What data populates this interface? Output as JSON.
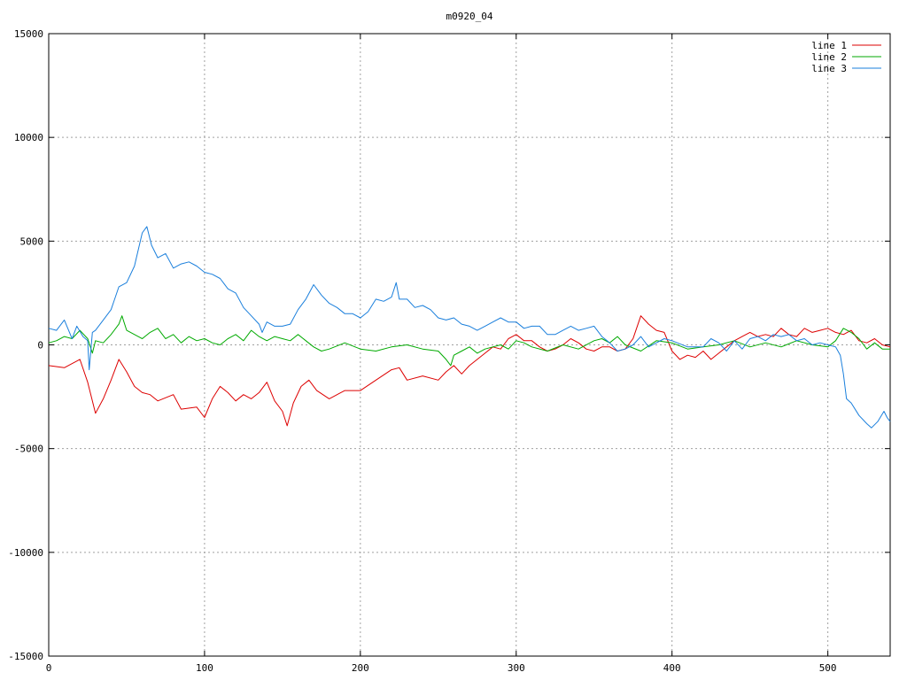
{
  "chart_data": {
    "type": "line",
    "title": "m0920_04",
    "xlabel": "",
    "ylabel": "",
    "xlim": [
      0,
      540
    ],
    "ylim": [
      -15000,
      15000
    ],
    "xticks": [
      0,
      100,
      200,
      300,
      400,
      500
    ],
    "yticks": [
      -15000,
      -10000,
      -5000,
      0,
      5000,
      10000,
      15000
    ],
    "grid": true,
    "legend_position": "top-right",
    "series": [
      {
        "name": "line 1",
        "color": "#dd0000",
        "points": [
          [
            0,
            -1000
          ],
          [
            10,
            -1100
          ],
          [
            20,
            -700
          ],
          [
            25,
            -1800
          ],
          [
            30,
            -3300
          ],
          [
            35,
            -2600
          ],
          [
            40,
            -1700
          ],
          [
            45,
            -700
          ],
          [
            50,
            -1300
          ],
          [
            55,
            -2000
          ],
          [
            60,
            -2300
          ],
          [
            65,
            -2400
          ],
          [
            70,
            -2700
          ],
          [
            80,
            -2400
          ],
          [
            85,
            -3100
          ],
          [
            95,
            -3000
          ],
          [
            100,
            -3500
          ],
          [
            105,
            -2600
          ],
          [
            110,
            -2000
          ],
          [
            115,
            -2300
          ],
          [
            120,
            -2700
          ],
          [
            125,
            -2400
          ],
          [
            130,
            -2600
          ],
          [
            135,
            -2300
          ],
          [
            140,
            -1800
          ],
          [
            145,
            -2700
          ],
          [
            150,
            -3200
          ],
          [
            153,
            -3900
          ],
          [
            157,
            -2800
          ],
          [
            162,
            -2000
          ],
          [
            167,
            -1700
          ],
          [
            172,
            -2200
          ],
          [
            180,
            -2600
          ],
          [
            190,
            -2200
          ],
          [
            200,
            -2200
          ],
          [
            210,
            -1700
          ],
          [
            220,
            -1200
          ],
          [
            225,
            -1100
          ],
          [
            230,
            -1700
          ],
          [
            240,
            -1500
          ],
          [
            250,
            -1700
          ],
          [
            255,
            -1300
          ],
          [
            260,
            -1000
          ],
          [
            265,
            -1400
          ],
          [
            270,
            -1000
          ],
          [
            275,
            -700
          ],
          [
            280,
            -400
          ],
          [
            285,
            -100
          ],
          [
            290,
            -200
          ],
          [
            295,
            300
          ],
          [
            300,
            500
          ],
          [
            305,
            200
          ],
          [
            310,
            200
          ],
          [
            315,
            -100
          ],
          [
            320,
            -300
          ],
          [
            325,
            -200
          ],
          [
            330,
            0
          ],
          [
            335,
            300
          ],
          [
            340,
            100
          ],
          [
            345,
            -200
          ],
          [
            350,
            -300
          ],
          [
            355,
            -100
          ],
          [
            360,
            -100
          ],
          [
            365,
            -300
          ],
          [
            370,
            -200
          ],
          [
            375,
            300
          ],
          [
            380,
            1400
          ],
          [
            385,
            1000
          ],
          [
            390,
            700
          ],
          [
            395,
            600
          ],
          [
            400,
            -300
          ],
          [
            405,
            -700
          ],
          [
            410,
            -500
          ],
          [
            415,
            -600
          ],
          [
            420,
            -300
          ],
          [
            425,
            -700
          ],
          [
            430,
            -400
          ],
          [
            435,
            -100
          ],
          [
            440,
            200
          ],
          [
            445,
            400
          ],
          [
            450,
            600
          ],
          [
            455,
            400
          ],
          [
            460,
            500
          ],
          [
            465,
            400
          ],
          [
            470,
            800
          ],
          [
            475,
            500
          ],
          [
            480,
            400
          ],
          [
            485,
            800
          ],
          [
            490,
            600
          ],
          [
            495,
            700
          ],
          [
            500,
            800
          ],
          [
            505,
            600
          ],
          [
            510,
            500
          ],
          [
            515,
            700
          ],
          [
            520,
            200
          ],
          [
            525,
            100
          ],
          [
            530,
            300
          ],
          [
            535,
            0
          ],
          [
            540,
            -100
          ]
        ]
      },
      {
        "name": "line 2",
        "color": "#00aa00",
        "points": [
          [
            0,
            100
          ],
          [
            5,
            200
          ],
          [
            10,
            400
          ],
          [
            15,
            300
          ],
          [
            20,
            700
          ],
          [
            25,
            300
          ],
          [
            28,
            -400
          ],
          [
            30,
            200
          ],
          [
            35,
            100
          ],
          [
            40,
            500
          ],
          [
            45,
            1000
          ],
          [
            47,
            1400
          ],
          [
            50,
            700
          ],
          [
            55,
            500
          ],
          [
            60,
            300
          ],
          [
            65,
            600
          ],
          [
            70,
            800
          ],
          [
            75,
            300
          ],
          [
            80,
            500
          ],
          [
            85,
            100
          ],
          [
            90,
            400
          ],
          [
            95,
            200
          ],
          [
            100,
            300
          ],
          [
            105,
            100
          ],
          [
            110,
            0
          ],
          [
            115,
            300
          ],
          [
            120,
            500
          ],
          [
            125,
            200
          ],
          [
            130,
            700
          ],
          [
            135,
            400
          ],
          [
            140,
            200
          ],
          [
            145,
            400
          ],
          [
            150,
            300
          ],
          [
            155,
            200
          ],
          [
            160,
            500
          ],
          [
            165,
            200
          ],
          [
            170,
            -100
          ],
          [
            175,
            -300
          ],
          [
            180,
            -200
          ],
          [
            190,
            100
          ],
          [
            200,
            -200
          ],
          [
            210,
            -300
          ],
          [
            220,
            -100
          ],
          [
            230,
            0
          ],
          [
            240,
            -200
          ],
          [
            250,
            -300
          ],
          [
            255,
            -700
          ],
          [
            258,
            -1000
          ],
          [
            260,
            -500
          ],
          [
            265,
            -300
          ],
          [
            270,
            -100
          ],
          [
            275,
            -400
          ],
          [
            280,
            -200
          ],
          [
            285,
            -100
          ],
          [
            290,
            0
          ],
          [
            295,
            -200
          ],
          [
            300,
            200
          ],
          [
            305,
            100
          ],
          [
            310,
            -100
          ],
          [
            320,
            -300
          ],
          [
            330,
            0
          ],
          [
            340,
            -200
          ],
          [
            350,
            200
          ],
          [
            355,
            300
          ],
          [
            360,
            100
          ],
          [
            365,
            400
          ],
          [
            370,
            0
          ],
          [
            380,
            -300
          ],
          [
            390,
            200
          ],
          [
            400,
            100
          ],
          [
            410,
            -200
          ],
          [
            420,
            -100
          ],
          [
            430,
            0
          ],
          [
            440,
            200
          ],
          [
            450,
            -100
          ],
          [
            460,
            100
          ],
          [
            470,
            -100
          ],
          [
            480,
            200
          ],
          [
            490,
            0
          ],
          [
            500,
            -100
          ],
          [
            505,
            200
          ],
          [
            510,
            800
          ],
          [
            515,
            600
          ],
          [
            520,
            300
          ],
          [
            525,
            -200
          ],
          [
            530,
            100
          ],
          [
            535,
            -200
          ],
          [
            540,
            -200
          ]
        ]
      },
      {
        "name": "line 3",
        "color": "#1a7fdc",
        "points": [
          [
            0,
            800
          ],
          [
            5,
            700
          ],
          [
            10,
            1200
          ],
          [
            15,
            300
          ],
          [
            18,
            900
          ],
          [
            22,
            400
          ],
          [
            25,
            200
          ],
          [
            26,
            -1200
          ],
          [
            28,
            600
          ],
          [
            30,
            700
          ],
          [
            35,
            1200
          ],
          [
            40,
            1700
          ],
          [
            45,
            2800
          ],
          [
            50,
            3000
          ],
          [
            55,
            3800
          ],
          [
            60,
            5400
          ],
          [
            63,
            5700
          ],
          [
            66,
            4800
          ],
          [
            70,
            4200
          ],
          [
            75,
            4400
          ],
          [
            80,
            3700
          ],
          [
            85,
            3900
          ],
          [
            90,
            4000
          ],
          [
            95,
            3800
          ],
          [
            100,
            3500
          ],
          [
            105,
            3400
          ],
          [
            110,
            3200
          ],
          [
            115,
            2700
          ],
          [
            120,
            2500
          ],
          [
            125,
            1800
          ],
          [
            130,
            1400
          ],
          [
            135,
            1000
          ],
          [
            137,
            600
          ],
          [
            140,
            1100
          ],
          [
            145,
            900
          ],
          [
            150,
            900
          ],
          [
            155,
            1000
          ],
          [
            160,
            1700
          ],
          [
            165,
            2200
          ],
          [
            170,
            2900
          ],
          [
            175,
            2400
          ],
          [
            180,
            2000
          ],
          [
            185,
            1800
          ],
          [
            190,
            1500
          ],
          [
            195,
            1500
          ],
          [
            200,
            1300
          ],
          [
            205,
            1600
          ],
          [
            210,
            2200
          ],
          [
            215,
            2100
          ],
          [
            220,
            2300
          ],
          [
            223,
            3000
          ],
          [
            225,
            2200
          ],
          [
            230,
            2200
          ],
          [
            235,
            1800
          ],
          [
            240,
            1900
          ],
          [
            245,
            1700
          ],
          [
            250,
            1300
          ],
          [
            255,
            1200
          ],
          [
            260,
            1300
          ],
          [
            265,
            1000
          ],
          [
            270,
            900
          ],
          [
            275,
            700
          ],
          [
            280,
            900
          ],
          [
            285,
            1100
          ],
          [
            290,
            1300
          ],
          [
            295,
            1100
          ],
          [
            300,
            1100
          ],
          [
            305,
            800
          ],
          [
            310,
            900
          ],
          [
            315,
            900
          ],
          [
            320,
            500
          ],
          [
            325,
            500
          ],
          [
            330,
            700
          ],
          [
            335,
            900
          ],
          [
            340,
            700
          ],
          [
            345,
            800
          ],
          [
            350,
            900
          ],
          [
            355,
            400
          ],
          [
            360,
            100
          ],
          [
            365,
            -300
          ],
          [
            370,
            -200
          ],
          [
            375,
            0
          ],
          [
            380,
            400
          ],
          [
            385,
            -100
          ],
          [
            390,
            100
          ],
          [
            395,
            300
          ],
          [
            400,
            200
          ],
          [
            410,
            -100
          ],
          [
            420,
            -100
          ],
          [
            425,
            300
          ],
          [
            430,
            100
          ],
          [
            435,
            -300
          ],
          [
            440,
            200
          ],
          [
            445,
            -200
          ],
          [
            450,
            300
          ],
          [
            455,
            400
          ],
          [
            460,
            200
          ],
          [
            465,
            500
          ],
          [
            470,
            400
          ],
          [
            475,
            500
          ],
          [
            480,
            200
          ],
          [
            485,
            300
          ],
          [
            490,
            0
          ],
          [
            495,
            100
          ],
          [
            500,
            0
          ],
          [
            505,
            -100
          ],
          [
            508,
            -500
          ],
          [
            510,
            -1400
          ],
          [
            512,
            -2600
          ],
          [
            515,
            -2800
          ],
          [
            520,
            -3400
          ],
          [
            525,
            -3800
          ],
          [
            528,
            -4000
          ],
          [
            532,
            -3700
          ],
          [
            536,
            -3200
          ],
          [
            538,
            -3500
          ],
          [
            540,
            -3700
          ]
        ]
      }
    ]
  }
}
